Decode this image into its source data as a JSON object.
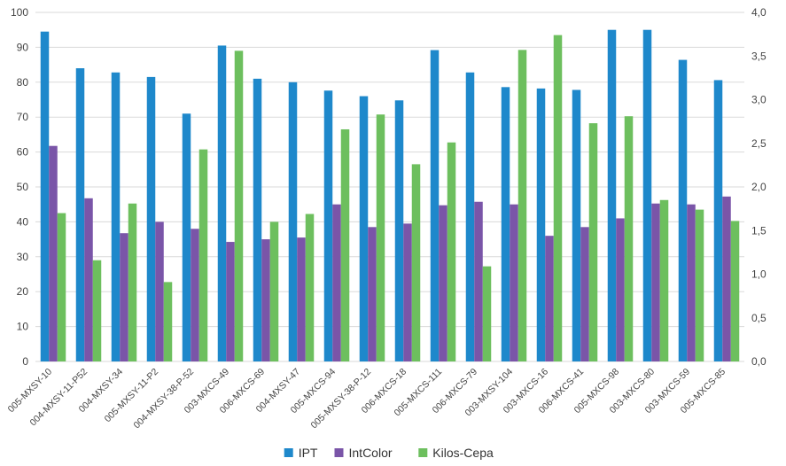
{
  "chart_data": {
    "type": "bar",
    "categories": [
      "005-MXSY-10",
      "004-MXSY-11-P52",
      "004-MXSY-34",
      "005-MXSY-11-P2",
      "004-MXSY-38-P-52",
      "003-MXCS-49",
      "006-MXCS-69",
      "004-MXSY-47",
      "005-MXCS-94",
      "005-MXSY-38-P-12",
      "006-MXCS-18",
      "005-MXCS-111",
      "006-MXCS-79",
      "003-MXSY-104",
      "003-MXCS-16",
      "006-MXCS-41",
      "005-MXCS-98",
      "003-MXCS-80",
      "003-MXCS-59",
      "005-MXCS-85"
    ],
    "series": [
      {
        "name": "IPT",
        "axis": "left",
        "color": "#1e88cb",
        "values": [
          94.5,
          84,
          82.8,
          81.5,
          71,
          90.5,
          81,
          80,
          77.6,
          76,
          74.8,
          89.2,
          82.8,
          78.6,
          78.2,
          77.8,
          95,
          95,
          86.4,
          80.6
        ]
      },
      {
        "name": "IntColor",
        "axis": "right",
        "color": "#7a55a8",
        "values": [
          2.47,
          1.87,
          1.47,
          1.6,
          1.52,
          1.37,
          1.4,
          1.42,
          1.8,
          1.54,
          1.58,
          1.79,
          1.83,
          1.8,
          1.44,
          1.54,
          1.64,
          1.81,
          1.8,
          1.89
        ]
      },
      {
        "name": "Kilos-Cepa",
        "axis": "right",
        "color": "#6dbf5e",
        "values": [
          1.7,
          1.16,
          1.81,
          0.91,
          2.43,
          3.56,
          1.6,
          1.69,
          2.66,
          2.83,
          2.26,
          2.51,
          1.09,
          3.57,
          3.74,
          2.73,
          2.81,
          1.85,
          1.74,
          1.61
        ]
      }
    ],
    "y_left": {
      "min": 0,
      "max": 100,
      "ticks": [
        "0",
        "10",
        "20",
        "30",
        "40",
        "50",
        "60",
        "70",
        "80",
        "90",
        "100"
      ]
    },
    "y_right": {
      "min": 0,
      "max": 4,
      "ticks": [
        "0,0",
        "0,5",
        "1,0",
        "1,5",
        "2,0",
        "2,5",
        "3,0",
        "3,5",
        "4,0"
      ]
    },
    "grid": true,
    "legend_position": "bottom-center",
    "title": "",
    "xlabel": "",
    "ylabel": ""
  }
}
